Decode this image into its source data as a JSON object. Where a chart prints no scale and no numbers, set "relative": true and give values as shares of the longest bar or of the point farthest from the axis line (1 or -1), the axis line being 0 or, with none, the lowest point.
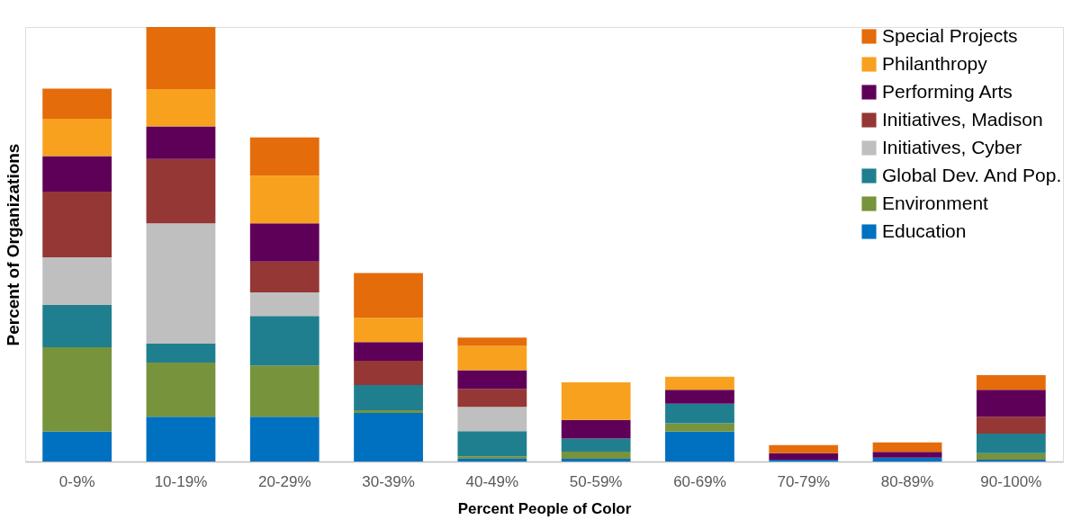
{
  "chart_data": {
    "type": "bar",
    "stacked": true,
    "relative": true,
    "xlabel": "Percent People of Color",
    "ylabel": "Percent of Organizations",
    "legend": "top right",
    "grid": false,
    "categories": [
      "0-9%",
      "10-19%",
      "20-29%",
      "30-39%",
      "40-49%",
      "50-59%",
      "60-69%",
      "70-79%",
      "80-89%",
      "90-100%"
    ],
    "series": [
      {
        "name": "Education",
        "color": "#0070c0",
        "values": [
          0.069,
          0.103,
          0.103,
          0.112,
          0.006,
          0.006,
          0.069,
          0.004,
          0.009,
          0.004
        ]
      },
      {
        "name": "Environment",
        "color": "#77933c",
        "values": [
          0.194,
          0.125,
          0.118,
          0.006,
          0.006,
          0.017,
          0.019,
          0,
          0,
          0.015
        ]
      },
      {
        "name": "Global Dev. And Pop.",
        "color": "#1f7f8f",
        "values": [
          0.097,
          0.043,
          0.114,
          0.058,
          0.058,
          0.03,
          0.045,
          0,
          0,
          0.045
        ]
      },
      {
        "name": "Initiatives, Cyber",
        "color": "#bfbfbf",
        "values": [
          0.11,
          0.277,
          0.054,
          0,
          0.056,
          0,
          0,
          0,
          0,
          0
        ]
      },
      {
        "name": "Initiatives, Madison",
        "color": "#953735",
        "values": [
          0.151,
          0.148,
          0.071,
          0.056,
          0.041,
          0,
          0,
          0,
          0,
          0.039
        ]
      },
      {
        "name": "Performing Arts",
        "color": "#5f0058",
        "values": [
          0.082,
          0.075,
          0.088,
          0.043,
          0.043,
          0.043,
          0.032,
          0.015,
          0.013,
          0.062
        ]
      },
      {
        "name": "Philanthropy",
        "color": "#f8a11e",
        "values": [
          0.086,
          0.086,
          0.11,
          0.056,
          0.056,
          0.086,
          0.03,
          0,
          0,
          0
        ]
      },
      {
        "name": "Special Projects",
        "color": "#e46c0a",
        "values": [
          0.069,
          0.143,
          0.088,
          0.103,
          0.019,
          0,
          0,
          0.019,
          0.022,
          0.034
        ]
      }
    ]
  }
}
